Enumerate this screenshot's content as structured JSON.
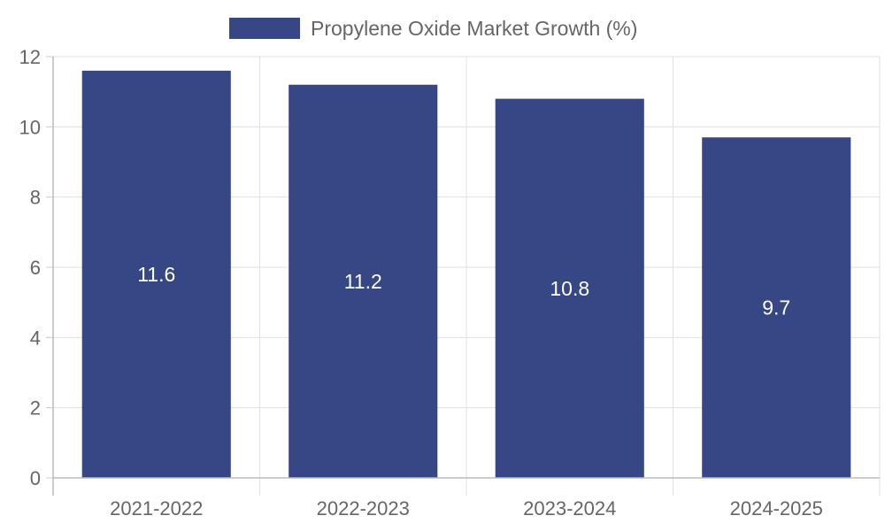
{
  "chart_data": {
    "type": "bar",
    "categories": [
      "2021-2022",
      "2022-2023",
      "2023-2024",
      "2024-2025"
    ],
    "series": [
      {
        "name": "Propylene Oxide Market Growth (%)",
        "values": [
          11.6,
          11.2,
          10.8,
          9.7
        ],
        "color": "#374785"
      }
    ],
    "ylim": [
      0,
      12
    ],
    "yticks": [
      0,
      2,
      4,
      6,
      8,
      10,
      12
    ],
    "grid": true,
    "legend": "top-center",
    "title": "",
    "xlabel": "",
    "ylabel": ""
  }
}
